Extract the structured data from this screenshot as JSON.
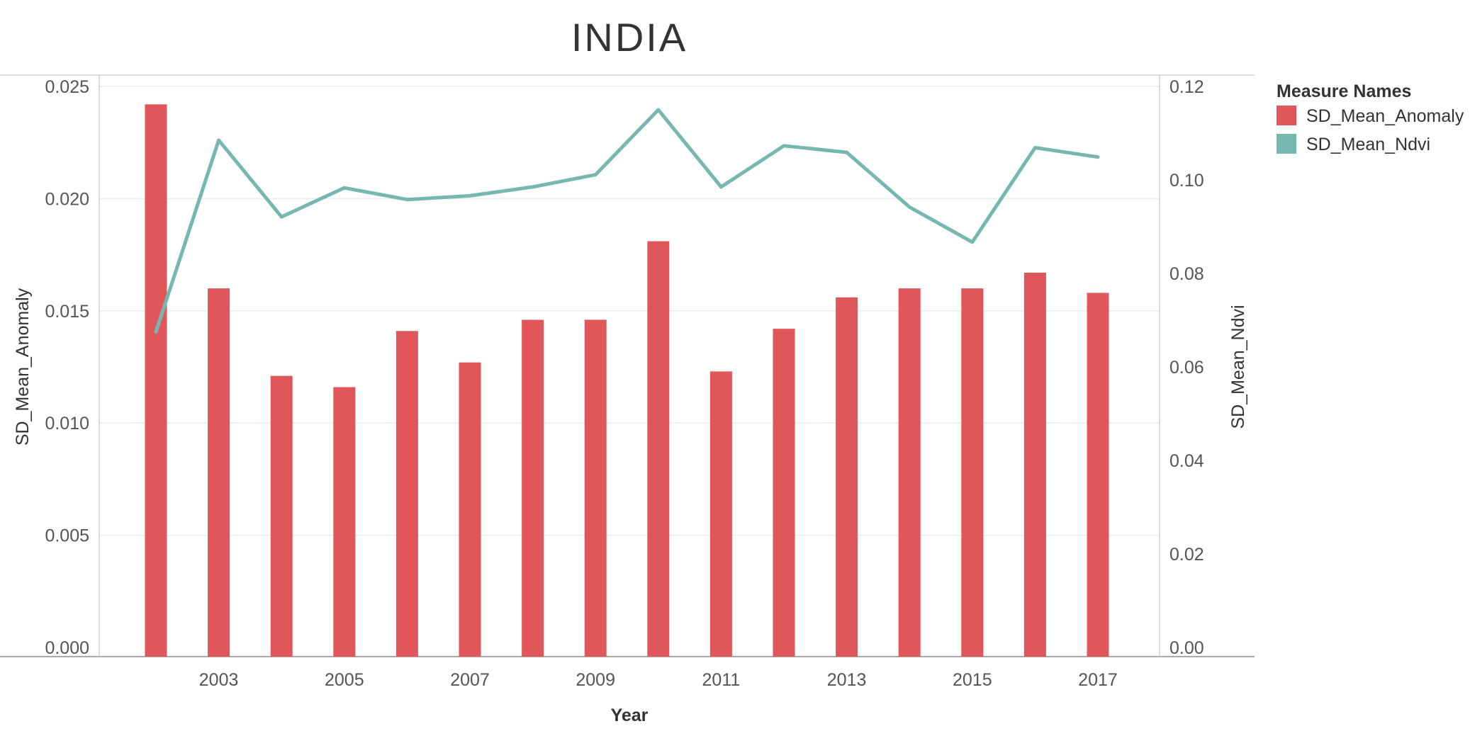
{
  "chart_data": {
    "type": "bar",
    "title": "INDIA",
    "xlabel": "Year",
    "ylabel_left": "SD_Mean_Anomaly",
    "ylabel_right": "SD_Mean_Ndvi",
    "categories": [
      2002,
      2003,
      2004,
      2005,
      2006,
      2007,
      2008,
      2009,
      2010,
      2011,
      2012,
      2013,
      2014,
      2015,
      2016,
      2017
    ],
    "x_tick_labels": [
      "2003",
      "2005",
      "2007",
      "2009",
      "2011",
      "2013",
      "2015",
      "2017"
    ],
    "left_axis": {
      "ylim": [
        0,
        0.025
      ],
      "ticks": [
        "0.000",
        "0.005",
        "0.010",
        "0.015",
        "0.020",
        "0.025"
      ]
    },
    "right_axis": {
      "ylim": [
        0,
        0.12
      ],
      "ticks": [
        "0.00",
        "0.02",
        "0.04",
        "0.06",
        "0.08",
        "0.10",
        "0.12"
      ]
    },
    "series": [
      {
        "name": "SD_Mean_Anomaly",
        "type": "bar",
        "axis": "left",
        "color": "#e15759",
        "values": [
          0.0242,
          0.016,
          0.0121,
          0.0116,
          0.0141,
          0.0127,
          0.0146,
          0.0146,
          0.0181,
          0.0123,
          0.0142,
          0.0156,
          0.016,
          0.016,
          0.0167,
          0.0158
        ]
      },
      {
        "name": "SD_Mean_Ndvi",
        "type": "line",
        "axis": "right",
        "color": "#76b7b2",
        "values": [
          0.0675,
          0.1085,
          0.0921,
          0.0983,
          0.0958,
          0.0966,
          0.0985,
          0.1011,
          0.115,
          0.0985,
          0.1073,
          0.1059,
          0.0942,
          0.0867,
          0.1069,
          0.1049
        ]
      }
    ],
    "legend": {
      "title": "Measure Names",
      "position": "top-right"
    },
    "grid": true
  }
}
